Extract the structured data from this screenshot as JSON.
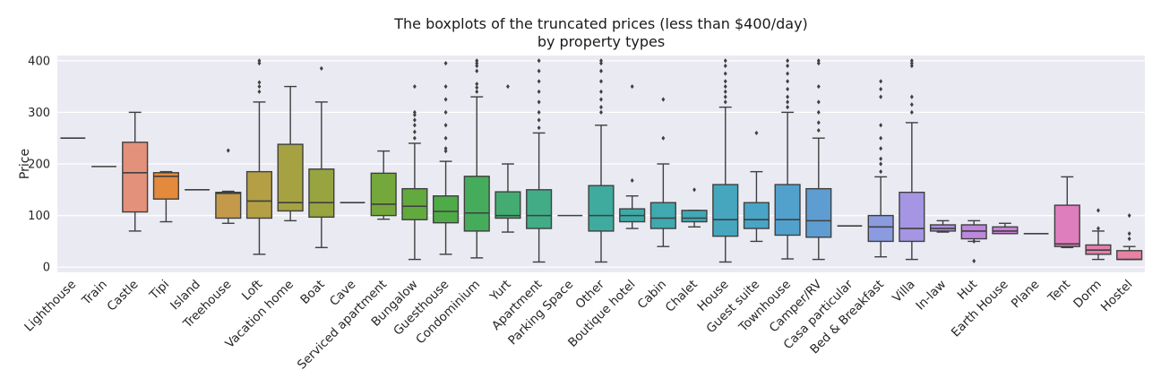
{
  "chart_data": {
    "type": "boxplot",
    "title_line1": "The boxplots of the truncated prices (less than $400/day)",
    "title_line2": "by property types",
    "xlabel": "",
    "ylabel": "Price",
    "ylim": [
      -10,
      410
    ],
    "yticks": [
      0,
      100,
      200,
      300,
      400
    ],
    "grid": true,
    "categories": [
      "Lighthouse",
      "Train",
      "Castle",
      "Tipi",
      "Island",
      "Treehouse",
      "Loft",
      "Vacation home",
      "Boat",
      "Cave",
      "Serviced apartment",
      "Bungalow",
      "Guesthouse",
      "Condominium",
      "Yurt",
      "Apartment",
      "Parking Space",
      "Other",
      "Boutique hotel",
      "Cabin",
      "Chalet",
      "House",
      "Guest suite",
      "Townhouse",
      "Camper/RV",
      "Casa particular",
      "Bed & Breakfast",
      "Villa",
      "In-law",
      "Hut",
      "Earth House",
      "Plane",
      "Tent",
      "Dorm",
      "Hostel"
    ],
    "colors": [
      "#3274a1",
      "#e1812c",
      "#e3917b",
      "#e38a3c",
      "#d4954f",
      "#c49a4a",
      "#b59f45",
      "#a7a241",
      "#98a43f",
      "#86a63c",
      "#74a83d",
      "#62a93e",
      "#4fab47",
      "#45ac5c",
      "#44ac72",
      "#42ac86",
      "#41ab96",
      "#3fab9f",
      "#3eaaa7",
      "#3fa9af",
      "#41a8b6",
      "#45a6be",
      "#4aa4c5",
      "#52a1cc",
      "#5d9dd1",
      "#6b98d6",
      "#8b9be0",
      "#a496e3",
      "#b08fe0",
      "#bd87db",
      "#c981d5",
      "#d67cca",
      "#df7ebd",
      "#e47fae",
      "#e682a4"
    ],
    "boxes": [
      {
        "q1": 250,
        "median": 250,
        "q3": 250,
        "lo": 250,
        "hi": 250,
        "outliers": []
      },
      {
        "q1": 195,
        "median": 195,
        "q3": 195,
        "lo": 195,
        "hi": 195,
        "outliers": []
      },
      {
        "q1": 107,
        "median": 183,
        "q3": 242,
        "lo": 70,
        "hi": 300,
        "outliers": []
      },
      {
        "q1": 132,
        "median": 176,
        "q3": 183,
        "lo": 88,
        "hi": 185,
        "outliers": []
      },
      {
        "q1": 150,
        "median": 150,
        "q3": 150,
        "lo": 150,
        "hi": 150,
        "outliers": []
      },
      {
        "q1": 95,
        "median": 143,
        "q3": 145,
        "lo": 85,
        "hi": 147,
        "outliers": [
          226
        ]
      },
      {
        "q1": 95,
        "median": 128,
        "q3": 185,
        "lo": 25,
        "hi": 320,
        "outliers": [
          340,
          350,
          358,
          395,
          400
        ]
      },
      {
        "q1": 109,
        "median": 125,
        "q3": 238,
        "lo": 90,
        "hi": 350,
        "outliers": []
      },
      {
        "q1": 97,
        "median": 125,
        "q3": 190,
        "lo": 38,
        "hi": 320,
        "outliers": [
          385
        ]
      },
      {
        "q1": 125,
        "median": 125,
        "q3": 125,
        "lo": 125,
        "hi": 125,
        "outliers": []
      },
      {
        "q1": 100,
        "median": 122,
        "q3": 182,
        "lo": 93,
        "hi": 225,
        "outliers": []
      },
      {
        "q1": 92,
        "median": 118,
        "q3": 152,
        "lo": 15,
        "hi": 240,
        "outliers": [
          250,
          262,
          275,
          285,
          295,
          300,
          350
        ]
      },
      {
        "q1": 86,
        "median": 108,
        "q3": 138,
        "lo": 25,
        "hi": 205,
        "outliers": [
          225,
          230,
          250,
          275,
          300,
          325,
          350,
          395
        ]
      },
      {
        "q1": 70,
        "median": 105,
        "q3": 176,
        "lo": 18,
        "hi": 330,
        "outliers": [
          340,
          348,
          355,
          380,
          390,
          395,
          400
        ]
      },
      {
        "q1": 95,
        "median": 100,
        "q3": 146,
        "lo": 68,
        "hi": 200,
        "outliers": [
          350
        ]
      },
      {
        "q1": 75,
        "median": 100,
        "q3": 150,
        "lo": 10,
        "hi": 260,
        "outliers": [
          270,
          285,
          300,
          320,
          340,
          360,
          380,
          400
        ]
      },
      {
        "q1": 100,
        "median": 100,
        "q3": 100,
        "lo": 100,
        "hi": 100,
        "outliers": []
      },
      {
        "q1": 70,
        "median": 100,
        "q3": 158,
        "lo": 10,
        "hi": 275,
        "outliers": [
          300,
          310,
          325,
          340,
          360,
          380,
          395,
          400
        ]
      },
      {
        "q1": 88,
        "median": 100,
        "q3": 113,
        "lo": 75,
        "hi": 138,
        "outliers": [
          168,
          350
        ]
      },
      {
        "q1": 75,
        "median": 95,
        "q3": 125,
        "lo": 40,
        "hi": 200,
        "outliers": [
          250,
          325
        ]
      },
      {
        "q1": 88,
        "median": 95,
        "q3": 110,
        "lo": 78,
        "hi": 110,
        "outliers": [
          150
        ]
      },
      {
        "q1": 60,
        "median": 92,
        "q3": 160,
        "lo": 10,
        "hi": 310,
        "outliers": [
          320,
          330,
          340,
          350,
          360,
          375,
          390,
          400
        ]
      },
      {
        "q1": 75,
        "median": 92,
        "q3": 125,
        "lo": 50,
        "hi": 185,
        "outliers": [
          260
        ]
      },
      {
        "q1": 62,
        "median": 92,
        "q3": 160,
        "lo": 16,
        "hi": 300,
        "outliers": [
          310,
          320,
          330,
          345,
          360,
          375,
          390,
          400
        ]
      },
      {
        "q1": 58,
        "median": 90,
        "q3": 152,
        "lo": 15,
        "hi": 250,
        "outliers": [
          265,
          280,
          300,
          320,
          350,
          395,
          400
        ]
      },
      {
        "q1": 80,
        "median": 80,
        "q3": 80,
        "lo": 80,
        "hi": 80,
        "outliers": []
      },
      {
        "q1": 50,
        "median": 78,
        "q3": 100,
        "lo": 20,
        "hi": 175,
        "outliers": [
          185,
          200,
          210,
          230,
          250,
          275,
          330,
          345,
          360
        ]
      },
      {
        "q1": 50,
        "median": 75,
        "q3": 145,
        "lo": 15,
        "hi": 280,
        "outliers": [
          300,
          315,
          330,
          390,
          395,
          400
        ]
      },
      {
        "q1": 70,
        "median": 75,
        "q3": 82,
        "lo": 68,
        "hi": 90,
        "outliers": []
      },
      {
        "q1": 55,
        "median": 70,
        "q3": 82,
        "lo": 50,
        "hi": 90,
        "outliers": [
          50,
          12
        ]
      },
      {
        "q1": 65,
        "median": 70,
        "q3": 78,
        "lo": 65,
        "hi": 85,
        "outliers": []
      },
      {
        "q1": 65,
        "median": 65,
        "q3": 65,
        "lo": 65,
        "hi": 65,
        "outliers": []
      },
      {
        "q1": 40,
        "median": 45,
        "q3": 120,
        "lo": 38,
        "hi": 175,
        "outliers": []
      },
      {
        "q1": 25,
        "median": 33,
        "q3": 43,
        "lo": 15,
        "hi": 70,
        "outliers": [
          75,
          110
        ]
      },
      {
        "q1": 15,
        "median": 15,
        "q3": 32,
        "lo": 15,
        "hi": 40,
        "outliers": [
          55,
          65,
          100
        ]
      }
    ]
  }
}
